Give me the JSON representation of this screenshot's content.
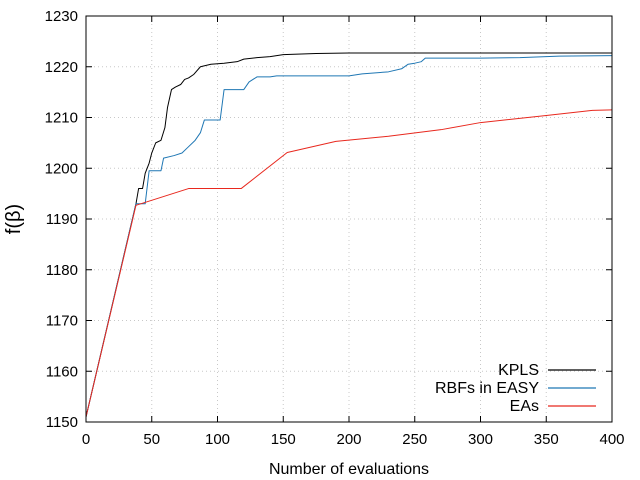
{
  "chart_data": {
    "type": "line",
    "xlabel": "Number of evaluations",
    "ylabel": "f(β)",
    "xlim": [
      0,
      400
    ],
    "ylim": [
      1150,
      1230
    ],
    "xticks": [
      0,
      50,
      100,
      150,
      200,
      250,
      300,
      350,
      400
    ],
    "yticks": [
      1150,
      1160,
      1170,
      1180,
      1190,
      1200,
      1210,
      1220,
      1230
    ],
    "grid": true,
    "legend_position": "bottom-right",
    "series": [
      {
        "name": "KPLS",
        "color": "#000000",
        "points": [
          [
            0,
            1151
          ],
          [
            38,
            1193
          ],
          [
            40,
            1196
          ],
          [
            43,
            1196
          ],
          [
            45,
            1199
          ],
          [
            48,
            1201
          ],
          [
            50,
            1203
          ],
          [
            53,
            1205
          ],
          [
            57,
            1205.5
          ],
          [
            60,
            1208
          ],
          [
            62,
            1212
          ],
          [
            65,
            1215.5
          ],
          [
            68,
            1216
          ],
          [
            72,
            1216.5
          ],
          [
            75,
            1217.5
          ],
          [
            78,
            1217.8
          ],
          [
            82,
            1218.5
          ],
          [
            87,
            1220
          ],
          [
            95,
            1220.5
          ],
          [
            105,
            1220.7
          ],
          [
            115,
            1221
          ],
          [
            120,
            1221.5
          ],
          [
            130,
            1221.8
          ],
          [
            140,
            1222
          ],
          [
            150,
            1222.4
          ],
          [
            175,
            1222.6
          ],
          [
            200,
            1222.7
          ],
          [
            250,
            1222.7
          ],
          [
            300,
            1222.7
          ],
          [
            400,
            1222.7
          ]
        ]
      },
      {
        "name": "RBFs in EASY",
        "color": "#1f77b4",
        "points": [
          [
            0,
            1151
          ],
          [
            38,
            1193
          ],
          [
            45,
            1193
          ],
          [
            48,
            1199.5
          ],
          [
            57,
            1199.5
          ],
          [
            59,
            1202
          ],
          [
            67,
            1202.5
          ],
          [
            73,
            1203
          ],
          [
            77,
            1204
          ],
          [
            83,
            1205.5
          ],
          [
            87,
            1207
          ],
          [
            90,
            1209.5
          ],
          [
            102,
            1209.5
          ],
          [
            105,
            1215.5
          ],
          [
            120,
            1215.5
          ],
          [
            124,
            1217
          ],
          [
            130,
            1218
          ],
          [
            140,
            1218
          ],
          [
            145,
            1218.2
          ],
          [
            200,
            1218.2
          ],
          [
            210,
            1218.6
          ],
          [
            230,
            1219
          ],
          [
            240,
            1219.6
          ],
          [
            245,
            1220.5
          ],
          [
            250,
            1220.7
          ],
          [
            255,
            1221
          ],
          [
            258,
            1221.7
          ],
          [
            300,
            1221.7
          ],
          [
            330,
            1221.8
          ],
          [
            350,
            1222
          ],
          [
            360,
            1222.1
          ],
          [
            400,
            1222.2
          ]
        ]
      },
      {
        "name": "EAs",
        "color": "#e8281e",
        "points": [
          [
            0,
            1151
          ],
          [
            38,
            1192.7
          ],
          [
            78,
            1196
          ],
          [
            118,
            1196
          ],
          [
            153,
            1203.1
          ],
          [
            190,
            1205.3
          ],
          [
            230,
            1206.3
          ],
          [
            270,
            1207.6
          ],
          [
            300,
            1209
          ],
          [
            350,
            1210.4
          ],
          [
            385,
            1211.4
          ],
          [
            400,
            1211.5
          ]
        ]
      }
    ]
  }
}
